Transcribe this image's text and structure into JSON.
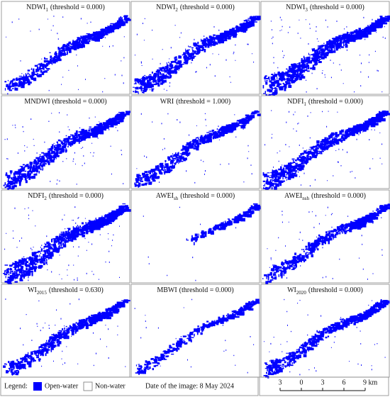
{
  "panels": [
    {
      "name": "NDWI",
      "sub": "1",
      "threshold": "(threshold = 0.000)"
    },
    {
      "name": "NDWI",
      "sub": "2",
      "threshold": "(threshold = 0.000)"
    },
    {
      "name": "NDWI",
      "sub": "3",
      "threshold": "(threshold = 0.000)"
    },
    {
      "name": "MNDWI",
      "threshold": "(threshold = 0.000)"
    },
    {
      "name": "WRI",
      "threshold": "(threshold = 1.000)"
    },
    {
      "name": "NDFI",
      "sub": "1",
      "threshold": "(threshold = 0.000)"
    },
    {
      "name": "NDFI",
      "sub": "2",
      "threshold": "(threshold = 0.000)"
    },
    {
      "name": "AWEI",
      "sub": "sh",
      "threshold": "(threshold = 0.000)"
    },
    {
      "name": "AWEI",
      "sub": "nsh",
      "threshold": "(threshold = 0.000)"
    },
    {
      "name": "WI",
      "sub": "2015",
      "threshold": "(threshold = 0.630)"
    },
    {
      "name": "MBWI",
      "threshold": "(threshold = 0.000)"
    },
    {
      "name": "WI",
      "sub": "2020",
      "threshold": "(threshold = 0.000)"
    }
  ],
  "legend": {
    "label": "Legend:",
    "items": [
      "Open-water",
      "Non-water"
    ]
  },
  "date": "Date of the image: 8 May 2024",
  "scale_bar": [
    "3",
    "0",
    "3",
    "6",
    "9 km"
  ]
}
